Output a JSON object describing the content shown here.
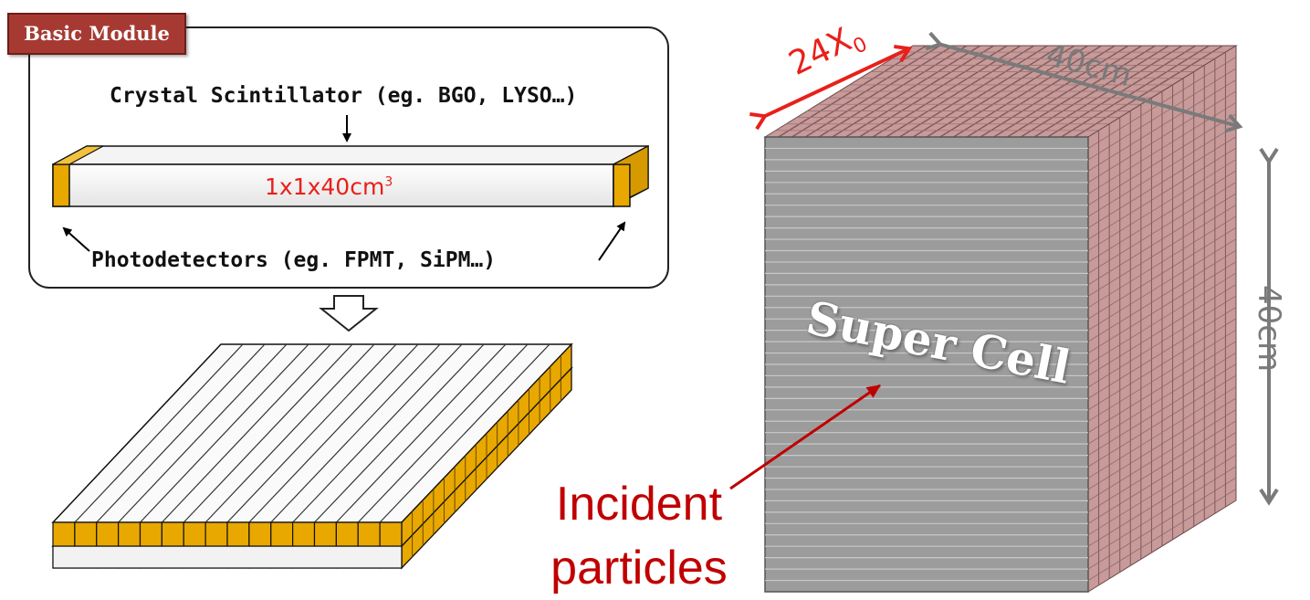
{
  "module_tag": "Basic Module",
  "labels": {
    "crystal": "Crystal Scintillator (eg. BGO, LYSO…)",
    "size": "1x1x40cm",
    "size_superscript": "3",
    "photodetectors": "Photodetectors (eg. FPMT, SiPM…)"
  },
  "supercell": {
    "name": "Super Cell",
    "depth_label": "24X",
    "depth_subscript": "0",
    "width_label": "40cm",
    "height_label": "40cm"
  },
  "incident": {
    "line1": "Incident",
    "line2": "particles"
  },
  "colors": {
    "tag_bg": "#a63a33",
    "crystal_end": "#e8a800",
    "accent_red": "#c00000",
    "dimension_gray": "#7a7a7a",
    "crystal_face": "#9c9c9c",
    "crystal_end_pink": "#c89a9a"
  }
}
